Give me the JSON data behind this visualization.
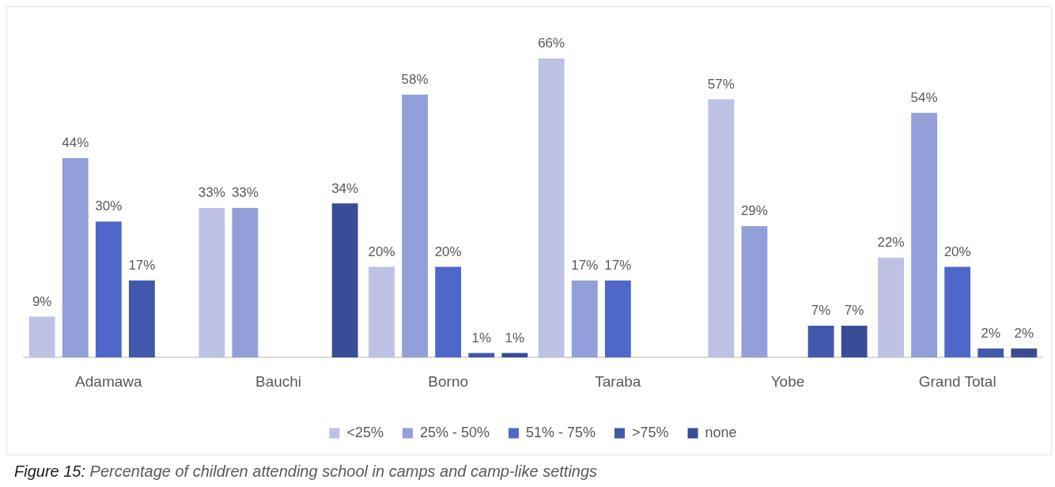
{
  "chart_data": {
    "type": "bar",
    "categories": [
      "Adamawa",
      "Bauchi",
      "Borno",
      "Taraba",
      "Yobe",
      "Grand Total"
    ],
    "series": [
      {
        "name": "<25%",
        "color": "#bdc1e3",
        "values": [
          9,
          33,
          20,
          66,
          57,
          22
        ],
        "value_labels": [
          "9%",
          "33%",
          "20%",
          "66%",
          "57%",
          "22%"
        ]
      },
      {
        "name": "25% - 50%",
        "color": "#939fd9",
        "values": [
          44,
          33,
          58,
          17,
          29,
          54
        ],
        "value_labels": [
          "44%",
          "33%",
          "58%",
          "17%",
          "29%",
          "54%"
        ]
      },
      {
        "name": "51% - 75%",
        "color": "#4f67c8",
        "values": [
          30,
          null,
          20,
          17,
          null,
          20
        ],
        "value_labels": [
          "30%",
          null,
          "20%",
          "17%",
          null,
          "20%"
        ]
      },
      {
        "name": ">75%",
        "color": "#4158ac",
        "values": [
          17,
          null,
          1,
          null,
          7,
          2
        ],
        "value_labels": [
          "17%",
          null,
          "1%",
          null,
          "7%",
          "2%"
        ]
      },
      {
        "name": "none",
        "color": "#3a4c96",
        "values": [
          null,
          34,
          1,
          null,
          7,
          2
        ],
        "value_labels": [
          null,
          "34%",
          "1%",
          null,
          "7%",
          "2%"
        ]
      }
    ],
    "legend": "bottom",
    "tick_labels": "x",
    "annotations": [
      "Figure 15: Percentage of children attending school in camps and camp-like settings"
    ]
  }
}
